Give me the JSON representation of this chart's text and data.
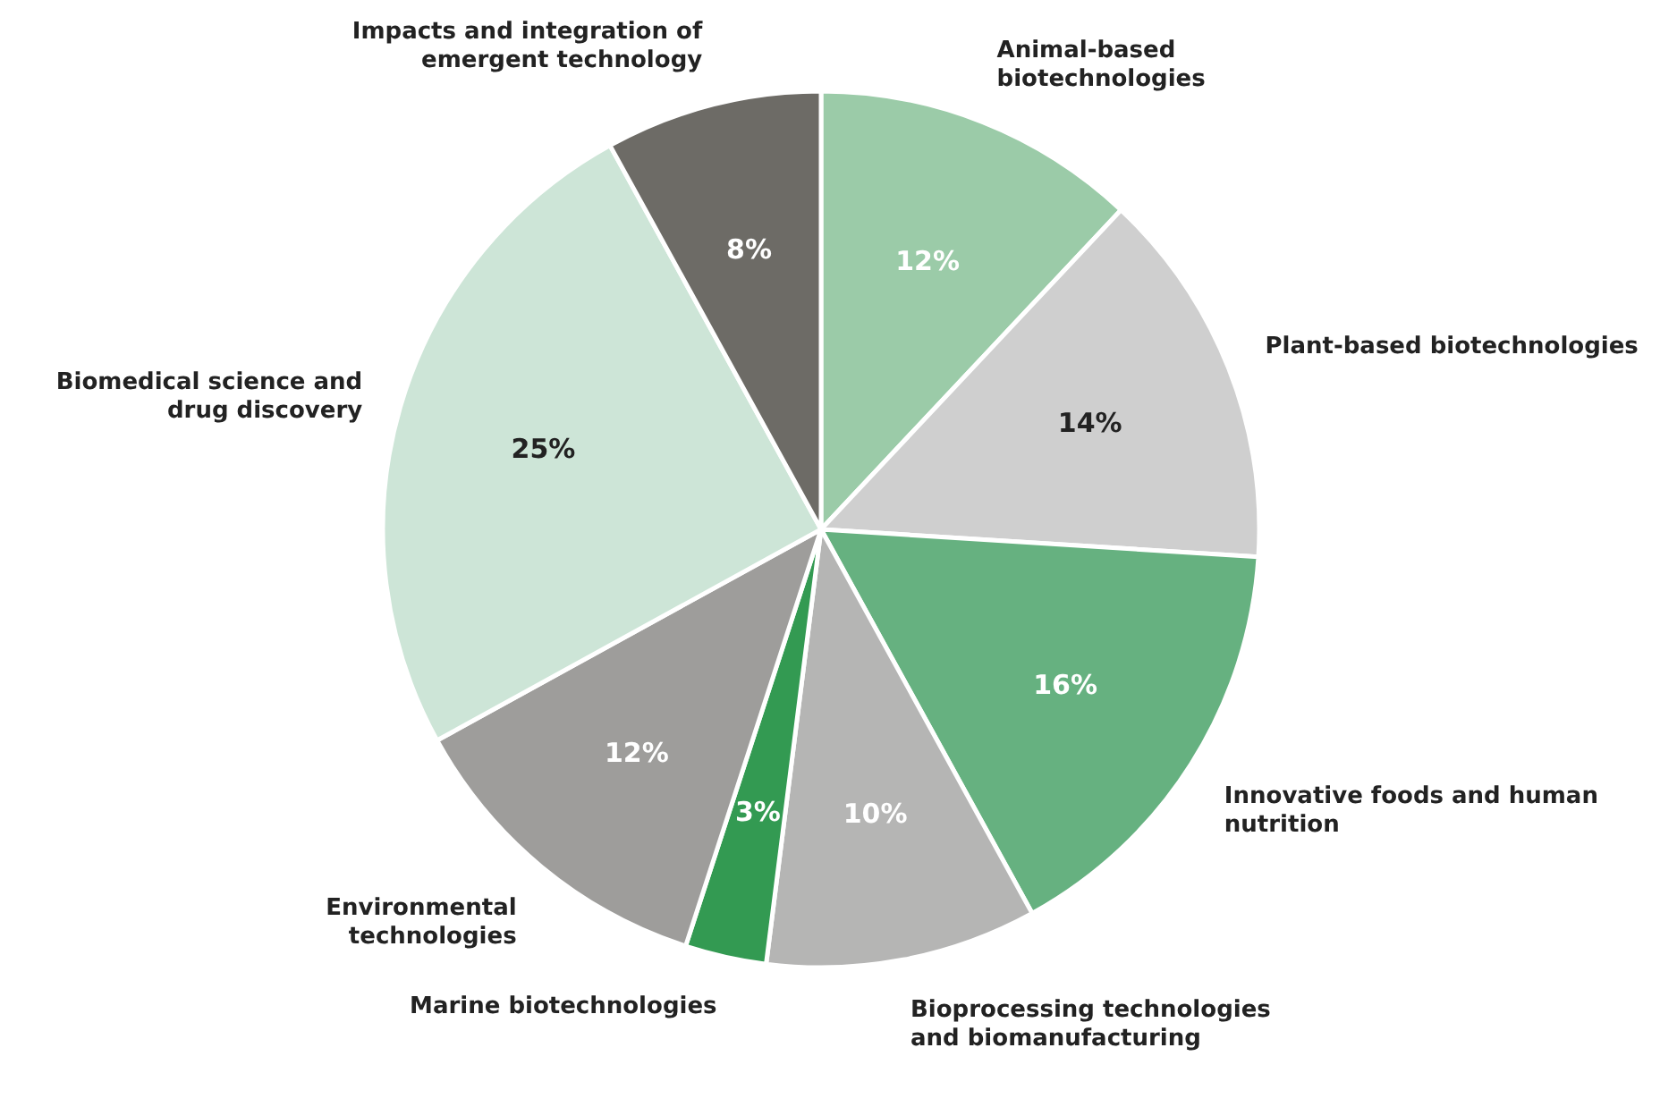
{
  "chart_data": {
    "type": "pie",
    "categories": [
      "Animal-based biotechnologies",
      "Plant-based biotechnologies",
      "Innovative foods and human nutrition",
      "Bioprocessing technologies and biomanufacturing",
      "Marine biotechnologies",
      "Environmental technologies",
      "Biomedical science and drug discovery",
      "Impacts and integration of emergent technology"
    ],
    "values": [
      12,
      14,
      16,
      10,
      3,
      12,
      25,
      8
    ],
    "value_labels": [
      "12%",
      "14%",
      "16%",
      "10%",
      "3%",
      "12%",
      "25%",
      "8%"
    ],
    "colors": [
      "#9bcba8",
      "#cfcfcf",
      "#66b180",
      "#b5b5b4",
      "#339a52",
      "#9e9d9b",
      "#cde5d7",
      "#6d6b66"
    ]
  }
}
